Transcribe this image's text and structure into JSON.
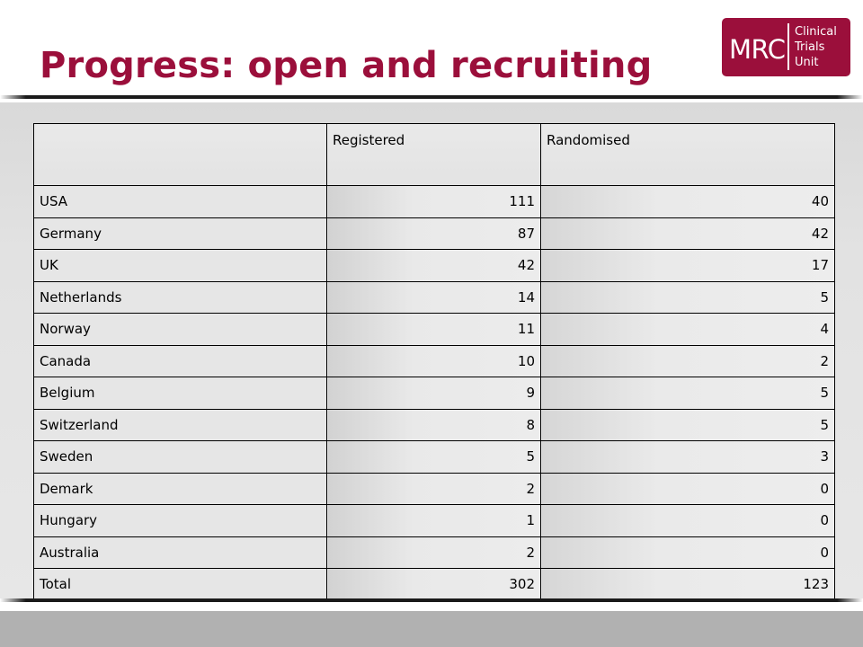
{
  "slide": {
    "title": "Progress: open and recruiting"
  },
  "logo": {
    "mark": "MRC",
    "line1": "Clinical",
    "line2": "Trials",
    "line3": "Unit"
  },
  "colors": {
    "brand": "#9b0f3b",
    "footer_band": "#b1b1b1"
  },
  "table": {
    "headers": [
      "",
      "Registered",
      "Randomised"
    ],
    "rows": [
      {
        "country": "USA",
        "registered": "111",
        "randomised": "40"
      },
      {
        "country": "Germany",
        "registered": "87",
        "randomised": "42"
      },
      {
        "country": "UK",
        "registered": "42",
        "randomised": "17"
      },
      {
        "country": "Netherlands",
        "registered": "14",
        "randomised": "5"
      },
      {
        "country": "Norway",
        "registered": "11",
        "randomised": "4"
      },
      {
        "country": "Canada",
        "registered": "10",
        "randomised": "2"
      },
      {
        "country": "Belgium",
        "registered": "9",
        "randomised": "5"
      },
      {
        "country": "Switzerland",
        "registered": "8",
        "randomised": "5"
      },
      {
        "country": "Sweden",
        "registered": "5",
        "randomised": "3"
      },
      {
        "country": "Demark",
        "registered": "2",
        "randomised": "0"
      },
      {
        "country": "Hungary",
        "registered": "1",
        "randomised": "0"
      },
      {
        "country": "Australia",
        "registered": "2",
        "randomised": "0"
      }
    ],
    "total": {
      "country": "Total",
      "registered": "302",
      "randomised": "123"
    }
  }
}
